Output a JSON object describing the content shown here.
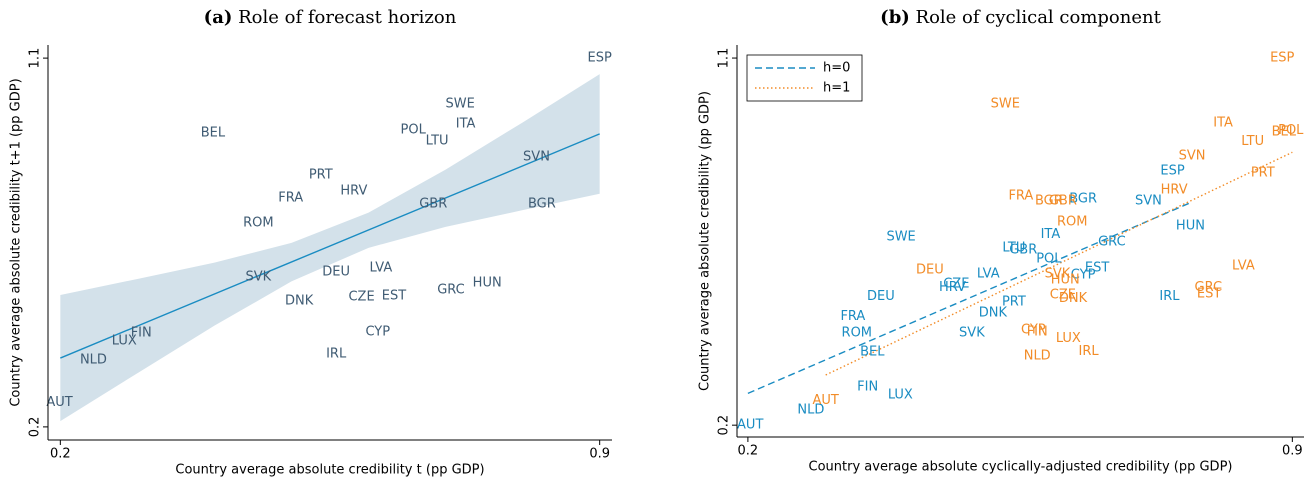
{
  "chart_data": [
    {
      "type": "scatter",
      "panel_label": "(a)",
      "title": "Role of forecast horizon",
      "x_label": "Country average absolute credibility t (pp GDP)",
      "y_label": "Country average absolute credibility t+1 (pp GDP)",
      "xlim": [
        0.184,
        0.916
      ],
      "ylim": [
        0.168,
        1.132
      ],
      "xticks": [
        0.2,
        0.9
      ],
      "yticks": [
        0.2,
        1.1
      ],
      "ci_band": {
        "color": "#d3e1ea",
        "x": [
          0.2,
          0.3,
          0.4,
          0.5,
          0.6,
          0.7,
          0.8,
          0.9
        ],
        "lower": [
          0.214,
          0.331,
          0.447,
          0.555,
          0.637,
          0.688,
          0.729,
          0.769
        ],
        "upper": [
          0.522,
          0.561,
          0.601,
          0.649,
          0.723,
          0.828,
          0.943,
          1.061
        ]
      },
      "fit_lines": [
        {
          "color": "#1a8cc2",
          "dash": "solid",
          "x": [
            0.2,
            0.9
          ],
          "y": [
            0.368,
            0.915
          ]
        }
      ],
      "series": [
        {
          "color": "#3f5b73",
          "labels": [
            "ESP",
            "SWE",
            "ITA",
            "BEL",
            "POL",
            "LTU",
            "SVN",
            "PRT",
            "HRV",
            "FRA",
            "GBR",
            "BGR",
            "ROM",
            "LVA",
            "DEU",
            "SVK",
            "HUN",
            "GRC",
            "DNK",
            "CZE",
            "EST",
            "FIN",
            "CYP",
            "LUX",
            "IRL",
            "NLD",
            "AUT"
          ],
          "x": [
            0.9,
            0.719,
            0.726,
            0.398,
            0.658,
            0.689,
            0.818,
            0.538,
            0.581,
            0.499,
            0.684,
            0.825,
            0.457,
            0.616,
            0.558,
            0.457,
            0.754,
            0.707,
            0.51,
            0.591,
            0.633,
            0.305,
            0.612,
            0.283,
            0.558,
            0.243,
            0.199
          ],
          "y": [
            1.1,
            0.988,
            0.939,
            0.917,
            0.924,
            0.898,
            0.859,
            0.815,
            0.776,
            0.759,
            0.744,
            0.744,
            0.698,
            0.588,
            0.578,
            0.566,
            0.551,
            0.534,
            0.507,
            0.517,
            0.52,
            0.429,
            0.432,
            0.41,
            0.378,
            0.363,
            0.259
          ]
        }
      ]
    },
    {
      "type": "scatter",
      "panel_label": "(b)",
      "title": "Role of cyclical component",
      "x_label": "Country average absolute cyclically-adjusted credibility  (pp GDP)",
      "y_label": "Country average absolute credibility  (pp GDP)",
      "xlim": [
        0.186,
        0.915
      ],
      "ylim": [
        0.171,
        1.132
      ],
      "xticks": [
        0.2,
        0.9
      ],
      "yticks": [
        0.2,
        1.1
      ],
      "legend": "top-left",
      "fit_lines": [
        {
          "name": "h=0",
          "color": "#1a8cc2",
          "dash": "dashed",
          "x": [
            0.2,
            0.771
          ],
          "y": [
            0.278,
            0.747
          ]
        },
        {
          "name": "h=1",
          "color": "#f28c28",
          "dash": "dotted",
          "x": [
            0.3,
            0.9
          ],
          "y": [
            0.323,
            0.869
          ]
        }
      ],
      "series": [
        {
          "color": "#1a8cc2",
          "labels": [
            "ESP",
            "SVN",
            "BGR",
            "HUN",
            "GRC",
            "ITA",
            "LTU",
            "GBR",
            "POL",
            "EST",
            "CYP",
            "SWE",
            "LVA",
            "CZE",
            "HRV",
            "IRL",
            "DEU",
            "PRT",
            "DNK",
            "FRA",
            "ROM",
            "SVK",
            "BEL",
            "FIN",
            "LUX",
            "NLD",
            "AUT"
          ],
          "x": [
            0.746,
            0.715,
            0.631,
            0.769,
            0.668,
            0.589,
            0.542,
            0.554,
            0.587,
            0.649,
            0.631,
            0.397,
            0.509,
            0.468,
            0.463,
            0.742,
            0.371,
            0.542,
            0.515,
            0.335,
            0.34,
            0.488,
            0.36,
            0.354,
            0.396,
            0.281,
            0.203
          ],
          "y": [
            0.823,
            0.749,
            0.754,
            0.688,
            0.649,
            0.668,
            0.634,
            0.629,
            0.607,
            0.585,
            0.568,
            0.661,
            0.57,
            0.546,
            0.538,
            0.516,
            0.516,
            0.502,
            0.475,
            0.467,
            0.426,
            0.426,
            0.379,
            0.293,
            0.274,
            0.237,
            0.2
          ]
        },
        {
          "color": "#f28c28",
          "labels": [
            "ESP",
            "SWE",
            "ITA",
            "POL",
            "BEL",
            "LTU",
            "SVN",
            "HRV",
            "PRT",
            "FRA",
            "BGR",
            "GBR",
            "ROM",
            "DEU",
            "SVK",
            "HUN",
            "LVA",
            "GRC",
            "EST",
            "CZE",
            "DNK",
            "CYP",
            "FIN",
            "LUX",
            "IRL",
            "NLD",
            "AUT"
          ],
          "x": [
            0.887,
            0.531,
            0.811,
            0.898,
            0.889,
            0.849,
            0.771,
            0.748,
            0.862,
            0.551,
            0.587,
            0.605,
            0.617,
            0.434,
            0.598,
            0.608,
            0.837,
            0.792,
            0.793,
            0.605,
            0.618,
            0.567,
            0.572,
            0.612,
            0.638,
            0.572,
            0.3
          ],
          "y": [
            1.1,
            0.987,
            0.941,
            0.923,
            0.919,
            0.896,
            0.86,
            0.776,
            0.818,
            0.762,
            0.749,
            0.749,
            0.698,
            0.58,
            0.57,
            0.556,
            0.59,
            0.538,
            0.521,
            0.519,
            0.511,
            0.433,
            0.428,
            0.413,
            0.381,
            0.369,
            0.261
          ]
        }
      ]
    }
  ]
}
